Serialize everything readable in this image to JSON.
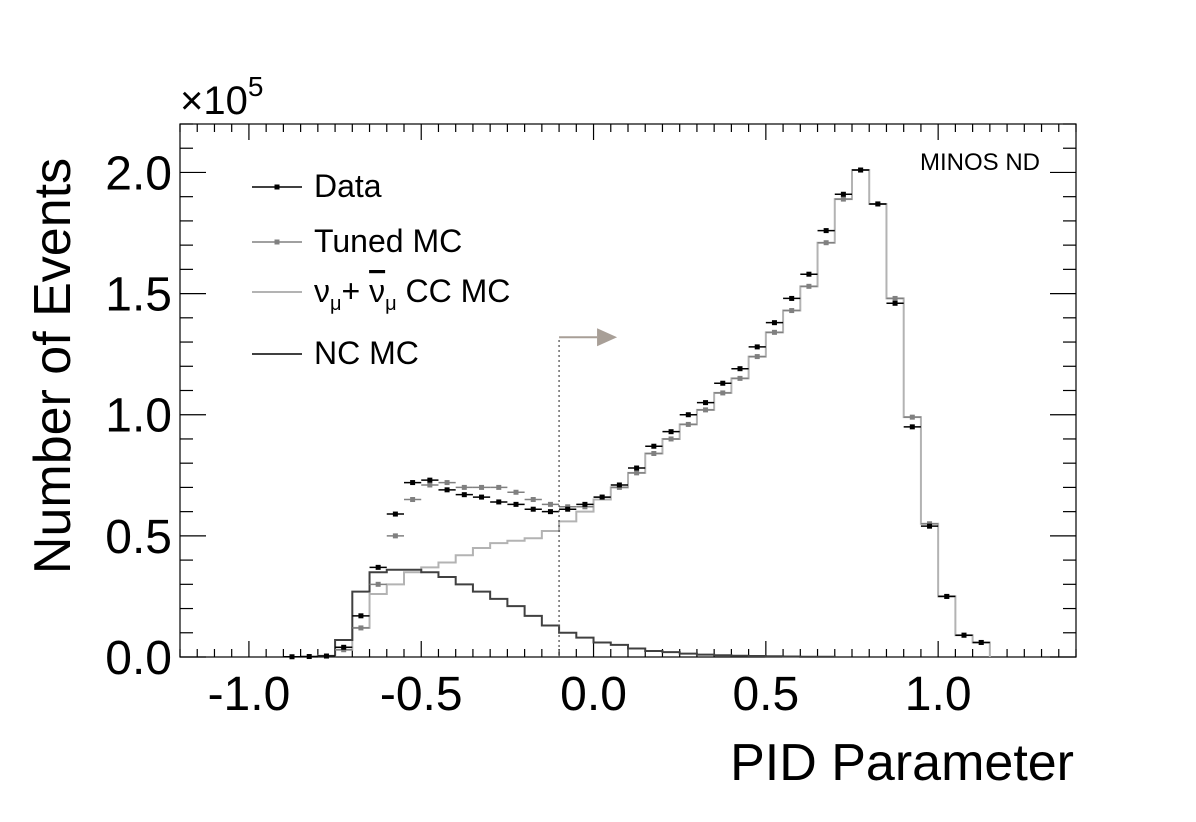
{
  "chart_data": {
    "type": "histogram",
    "xlabel": "PID Parameter",
    "ylabel": "Number of Events",
    "y_multiplier": "×10",
    "y_multiplier_exp": "5",
    "annotation": "MINOS ND",
    "xlim": [
      -1.2,
      1.4
    ],
    "ylim": [
      0,
      2.2
    ],
    "bin_width": 0.05,
    "x_ticks": [
      "-1.0",
      "-0.5",
      "0.0",
      "0.5",
      "1.0"
    ],
    "x_tick_values": [
      -1.0,
      -0.5,
      0.0,
      0.5,
      1.0
    ],
    "y_ticks": [
      "0.0",
      "0.5",
      "1.0",
      "1.5",
      "2.0"
    ],
    "y_tick_values": [
      0.0,
      0.5,
      1.0,
      1.5,
      2.0
    ],
    "legend": {
      "placement": "top-left",
      "entries": [
        {
          "key": "data",
          "label": "Data",
          "style": "marker"
        },
        {
          "key": "tuned",
          "label": "Tuned MC",
          "style": "marker"
        },
        {
          "key": "cc",
          "label_parts": [
            "ν",
            "μ",
            "+ ",
            "ν",
            "μ",
            " CC MC"
          ],
          "style": "line"
        },
        {
          "key": "nc",
          "label": "NC MC",
          "style": "line"
        }
      ]
    },
    "cut": {
      "x": -0.1,
      "y": 1.32
    },
    "colors": {
      "data": "#000000",
      "tuned": "#808080",
      "cc": "#b3b3b3",
      "nc": "#404040",
      "arrow": "#a89f97"
    },
    "series": {
      "data": {
        "centers": [
          -0.875,
          -0.825,
          -0.775,
          -0.725,
          -0.675,
          -0.625,
          -0.575,
          -0.525,
          -0.475,
          -0.425,
          -0.375,
          -0.325,
          -0.275,
          -0.225,
          -0.175,
          -0.125,
          -0.075,
          -0.025,
          0.025,
          0.075,
          0.125,
          0.175,
          0.225,
          0.275,
          0.325,
          0.375,
          0.425,
          0.475,
          0.525,
          0.575,
          0.625,
          0.675,
          0.725,
          0.775,
          0.825,
          0.875,
          0.925,
          0.975,
          1.025,
          1.075,
          1.125
        ],
        "values": [
          0.001,
          0.002,
          0.004,
          0.04,
          0.17,
          0.37,
          0.59,
          0.72,
          0.73,
          0.69,
          0.67,
          0.66,
          0.64,
          0.63,
          0.61,
          0.6,
          0.61,
          0.63,
          0.66,
          0.71,
          0.78,
          0.87,
          0.93,
          1.0,
          1.05,
          1.13,
          1.19,
          1.28,
          1.38,
          1.48,
          1.58,
          1.76,
          1.91,
          2.01,
          1.87,
          1.46,
          0.95,
          0.54,
          0.25,
          0.09,
          0.06
        ]
      },
      "tuned": {
        "centers": [
          -0.775,
          -0.725,
          -0.675,
          -0.625,
          -0.575,
          -0.525,
          -0.475,
          -0.425,
          -0.375,
          -0.325,
          -0.275,
          -0.225,
          -0.175,
          -0.125,
          -0.075,
          -0.025,
          0.025,
          0.075,
          0.125,
          0.175,
          0.225,
          0.275,
          0.325,
          0.375,
          0.425,
          0.475,
          0.525,
          0.575,
          0.625,
          0.675,
          0.725,
          0.775,
          0.825,
          0.875,
          0.925,
          0.975,
          1.025,
          1.075,
          1.125
        ],
        "values": [
          0.004,
          0.03,
          0.12,
          0.3,
          0.5,
          0.65,
          0.71,
          0.72,
          0.7,
          0.7,
          0.7,
          0.68,
          0.65,
          0.63,
          0.62,
          0.62,
          0.66,
          0.7,
          0.76,
          0.84,
          0.9,
          0.96,
          1.02,
          1.09,
          1.15,
          1.24,
          1.34,
          1.43,
          1.53,
          1.71,
          1.89,
          2.01,
          1.87,
          1.48,
          0.99,
          0.55,
          0.25,
          0.09,
          0.06
        ]
      },
      "cc": {
        "edges": [
          -0.8,
          -0.75,
          -0.7,
          -0.65,
          -0.6,
          -0.55,
          -0.5,
          -0.45,
          -0.4,
          -0.35,
          -0.3,
          -0.25,
          -0.2,
          -0.15,
          -0.1,
          -0.05,
          0.0,
          0.05,
          0.1,
          0.15,
          0.2,
          0.25,
          0.3,
          0.35,
          0.4,
          0.45,
          0.5,
          0.55,
          0.6,
          0.65,
          0.7,
          0.75,
          0.8,
          0.85,
          0.9,
          0.95,
          1.0,
          1.05,
          1.1,
          1.15
        ],
        "values": [
          0.005,
          0.03,
          0.12,
          0.26,
          0.3,
          0.35,
          0.37,
          0.39,
          0.42,
          0.45,
          0.47,
          0.48,
          0.49,
          0.52,
          0.56,
          0.6,
          0.65,
          0.7,
          0.76,
          0.84,
          0.9,
          0.96,
          1.02,
          1.09,
          1.15,
          1.24,
          1.34,
          1.43,
          1.53,
          1.71,
          1.89,
          2.01,
          1.87,
          1.48,
          0.99,
          0.55,
          0.25,
          0.09,
          0.06
        ]
      },
      "nc": {
        "edges": [
          -0.8,
          -0.75,
          -0.7,
          -0.65,
          -0.6,
          -0.55,
          -0.5,
          -0.45,
          -0.4,
          -0.35,
          -0.3,
          -0.25,
          -0.2,
          -0.15,
          -0.1,
          -0.05,
          0.0,
          0.05,
          0.1,
          0.15,
          0.2,
          0.25,
          0.3,
          0.35,
          0.4,
          0.45,
          0.5,
          0.55,
          0.6,
          0.65,
          0.7
        ],
        "values": [
          0.003,
          0.07,
          0.27,
          0.35,
          0.36,
          0.36,
          0.35,
          0.33,
          0.3,
          0.27,
          0.24,
          0.21,
          0.17,
          0.13,
          0.1,
          0.08,
          0.06,
          0.05,
          0.035,
          0.025,
          0.02,
          0.014,
          0.01,
          0.007,
          0.005,
          0.004,
          0.003,
          0.002,
          0.001,
          0.001
        ]
      }
    }
  }
}
